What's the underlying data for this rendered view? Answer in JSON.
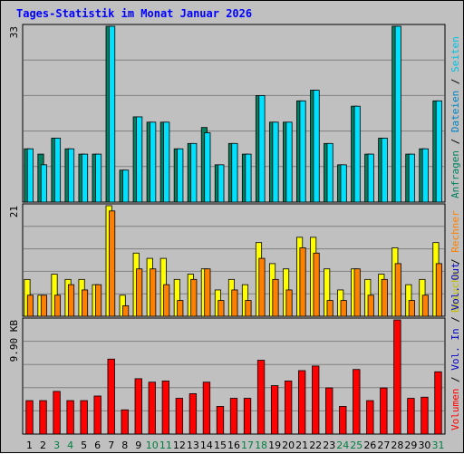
{
  "title": "Tages-Statistik im Monat Januar 2026",
  "colors": {
    "background": "#c0c0c0",
    "grid": "#808080",
    "title": "#0000ff",
    "anfragen": "#008060",
    "dateien": "#00e0ff",
    "seiten": "#00e0ff",
    "besuche": "#ffff00",
    "rechner": "#ff8000",
    "volumen": "#ff0000",
    "weekend_label": "#008040",
    "weekday_label": "#000000"
  },
  "chart_data": {
    "type": "bar",
    "days": [
      "1",
      "2",
      "3",
      "4",
      "5",
      "6",
      "7",
      "8",
      "9",
      "10",
      "11",
      "12",
      "13",
      "14",
      "15",
      "16",
      "17",
      "18",
      "19",
      "20",
      "21",
      "22",
      "23",
      "24",
      "25",
      "26",
      "27",
      "28",
      "29",
      "30",
      "31"
    ],
    "weekend_days": [
      "3",
      "4",
      "10",
      "11",
      "17",
      "18",
      "24",
      "25",
      "31"
    ],
    "panels": [
      {
        "name": "top",
        "ymax_label": "33",
        "ymax": 33,
        "right_label_parts": [
          {
            "text": "Anfragen",
            "color": "#008060"
          },
          {
            "text": " / ",
            "color": "#000000"
          },
          {
            "text": "Dateien",
            "color": "#0080c0"
          },
          {
            "text": " / ",
            "color": "#000000"
          },
          {
            "text": "Seiten",
            "color": "#00c0e0"
          }
        ],
        "series": [
          {
            "key": "anfragen",
            "values": [
              10,
              9,
              12,
              10,
              9,
              9,
              33,
              6,
              16,
              15,
              15,
              10,
              11,
              14,
              7,
              11,
              9,
              20,
              15,
              15,
              19,
              21,
              11,
              7,
              18,
              9,
              12,
              33,
              9,
              10,
              19
            ]
          },
          {
            "key": "dateien",
            "values": [
              10,
              7,
              12,
              10,
              9,
              9,
              33,
              6,
              16,
              15,
              15,
              10,
              11,
              13,
              7,
              11,
              9,
              20,
              15,
              15,
              19,
              21,
              11,
              7,
              18,
              9,
              12,
              33,
              9,
              10,
              19
            ]
          }
        ]
      },
      {
        "name": "middle",
        "ymax_label": "21",
        "ymax": 21,
        "right_label_parts": [
          {
            "text": "Besuche",
            "color": "#c0c000"
          },
          {
            "text": " / ",
            "color": "#000000"
          },
          {
            "text": "Rechner",
            "color": "#ff8000"
          }
        ],
        "series": [
          {
            "key": "besuche",
            "values": [
              7,
              4,
              8,
              7,
              7,
              6,
              21,
              4,
              12,
              11,
              11,
              7,
              8,
              9,
              5,
              7,
              6,
              14,
              10,
              9,
              15,
              15,
              9,
              5,
              9,
              7,
              8,
              13,
              6,
              7,
              14
            ]
          },
          {
            "key": "rechner",
            "values": [
              4,
              4,
              4,
              6,
              5,
              6,
              20,
              2,
              9,
              9,
              6,
              3,
              7,
              9,
              3,
              5,
              3,
              11,
              7,
              5,
              13,
              12,
              3,
              3,
              9,
              4,
              7,
              10,
              3,
              4,
              10
            ]
          }
        ]
      },
      {
        "name": "bottom",
        "ymax_label": "9.90 KB",
        "ymax": 9.9,
        "right_label_parts": [
          {
            "text": "Volumen",
            "color": "#ff0000"
          },
          {
            "text": " / ",
            "color": "#000000"
          },
          {
            "text": "Vol. In",
            "color": "#0000c0"
          },
          {
            "text": " / ",
            "color": "#000000"
          },
          {
            "text": "Vol. Out",
            "color": "#0000c0"
          }
        ],
        "series": [
          {
            "key": "volumen",
            "values": [
              2.9,
              2.9,
              3.7,
              2.9,
              2.9,
              3.3,
              6.5,
              2.1,
              4.8,
              4.5,
              4.6,
              3.1,
              3.5,
              4.5,
              2.4,
              3.1,
              3.1,
              6.4,
              4.2,
              4.6,
              5.5,
              5.9,
              4.0,
              2.4,
              5.6,
              2.9,
              4.0,
              9.9,
              3.1,
              3.2,
              5.4
            ]
          }
        ]
      }
    ]
  }
}
